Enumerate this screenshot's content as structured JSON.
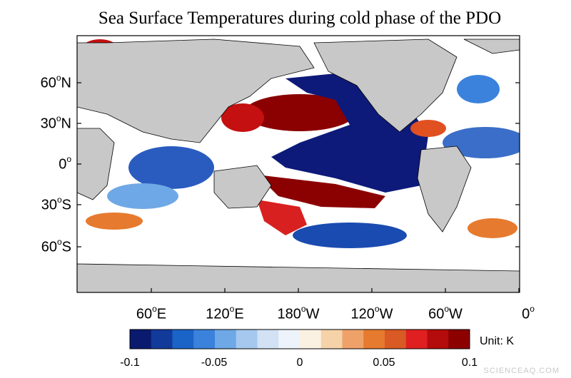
{
  "title": "Sea Surface Temperatures during cold phase of the PDO",
  "y_axis": {
    "ticks": [
      {
        "value": "60",
        "unit": "N"
      },
      {
        "value": "30",
        "unit": "N"
      },
      {
        "value": "0",
        "unit": ""
      },
      {
        "value": "30",
        "unit": "S"
      },
      {
        "value": "60",
        "unit": "S"
      }
    ]
  },
  "x_axis": {
    "ticks": [
      {
        "value": "60",
        "unit": "E"
      },
      {
        "value": "120",
        "unit": "E"
      },
      {
        "value": "180",
        "unit": "W"
      },
      {
        "value": "120",
        "unit": "W"
      },
      {
        "value": "60",
        "unit": "W"
      },
      {
        "value": "0",
        "unit": ""
      }
    ]
  },
  "colorbar": {
    "unit_label": "Unit: K",
    "tick_labels": [
      "-0.1",
      "-0.05",
      "0",
      "0.05",
      "0.1"
    ],
    "range": [
      -0.1,
      0.1
    ],
    "colors": [
      "#0a1a6e",
      "#123a9a",
      "#1a64c8",
      "#3b82dc",
      "#6fa8e6",
      "#a6c8ee",
      "#d2e2f4",
      "#edf3fa",
      "#fbf1e2",
      "#f5d2a8",
      "#eea26a",
      "#e67a2e",
      "#d95a24",
      "#e02020",
      "#b40c0c",
      "#8c0000"
    ]
  },
  "colors": {
    "land": "#c8c8c8",
    "ocean_neutral": "#ffffff",
    "deep_blue": "#0d1a7a",
    "deep_red": "#8b0000"
  },
  "watermark": "SCIENCEAQ.COM"
}
